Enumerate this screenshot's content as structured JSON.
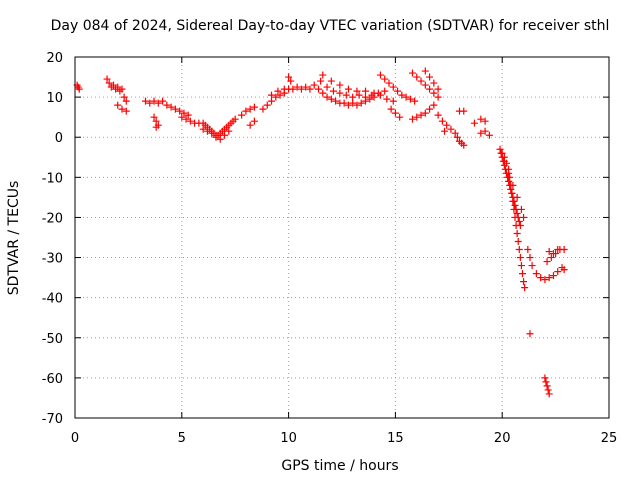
{
  "chart_data": {
    "type": "scatter",
    "title": "Day 084 of 2024, Sidereal Day-to-day VTEC variation (SDTVAR) for receiver sthl",
    "xlabel": "GPS time / hours",
    "ylabel": "SDTVAR / TECUs",
    "xlim": [
      0,
      25
    ],
    "ylim": [
      -70,
      20
    ],
    "xticks": [
      0,
      5,
      10,
      15,
      20,
      25
    ],
    "xtick_labels": [
      "0",
      "5",
      "10",
      "15",
      "20",
      "25"
    ],
    "yticks": [
      20,
      10,
      0,
      -10,
      -20,
      -30,
      -40,
      -50,
      -60,
      -70
    ],
    "ytick_labels": [
      "20",
      "10",
      "0",
      "-10",
      "-20",
      "-30",
      "-40",
      "-50",
      "-60",
      "-70"
    ],
    "grid": true,
    "marker": "+",
    "color": "#ff0000",
    "series": [
      {
        "name": "SDTVAR",
        "points": [
          [
            0.1,
            13
          ],
          [
            0.15,
            12.5
          ],
          [
            0.2,
            12
          ],
          [
            1.5,
            14.5
          ],
          [
            1.6,
            13.5
          ],
          [
            1.7,
            12.5
          ],
          [
            1.8,
            13
          ],
          [
            1.9,
            12
          ],
          [
            2.0,
            12.5
          ],
          [
            2.1,
            11.5
          ],
          [
            2.2,
            12
          ],
          [
            2.0,
            8
          ],
          [
            2.2,
            7
          ],
          [
            2.4,
            6.5
          ],
          [
            2.3,
            10
          ],
          [
            2.4,
            9
          ],
          [
            3.3,
            9
          ],
          [
            3.5,
            8.5
          ],
          [
            3.7,
            9
          ],
          [
            3.9,
            8.5
          ],
          [
            4.1,
            9
          ],
          [
            4.3,
            8
          ],
          [
            4.5,
            7.5
          ],
          [
            4.7,
            7
          ],
          [
            4.9,
            6.5
          ],
          [
            5.1,
            6
          ],
          [
            5.3,
            5.5
          ],
          [
            3.7,
            5
          ],
          [
            3.8,
            4
          ],
          [
            3.9,
            3
          ],
          [
            3.8,
            2.5
          ],
          [
            5.0,
            5
          ],
          [
            5.2,
            4.5
          ],
          [
            5.4,
            4
          ],
          [
            5.6,
            3.5
          ],
          [
            5.8,
            3.5
          ],
          [
            6.0,
            3.5
          ],
          [
            6.1,
            3
          ],
          [
            6.2,
            2.5
          ],
          [
            6.3,
            2
          ],
          [
            6.4,
            1.5
          ],
          [
            6.5,
            1
          ],
          [
            6.6,
            0.5
          ],
          [
            6.7,
            0.5
          ],
          [
            6.8,
            1
          ],
          [
            6.9,
            1.5
          ],
          [
            7.0,
            2
          ],
          [
            7.1,
            2.5
          ],
          [
            7.2,
            3
          ],
          [
            7.3,
            3.5
          ],
          [
            7.4,
            4
          ],
          [
            6.0,
            2
          ],
          [
            6.2,
            1.5
          ],
          [
            6.4,
            1
          ],
          [
            6.6,
            0
          ],
          [
            6.8,
            -0.5
          ],
          [
            7.0,
            0.5
          ],
          [
            7.2,
            1.5
          ],
          [
            7.5,
            4.5
          ],
          [
            7.8,
            5.5
          ],
          [
            8.0,
            6.5
          ],
          [
            8.2,
            7
          ],
          [
            8.4,
            7.5
          ],
          [
            8.2,
            3
          ],
          [
            8.4,
            4
          ],
          [
            8.8,
            7
          ],
          [
            9.0,
            8
          ],
          [
            9.2,
            9
          ],
          [
            9.4,
            10
          ],
          [
            9.6,
            10.5
          ],
          [
            9.8,
            11
          ],
          [
            10.0,
            12
          ],
          [
            10.2,
            12
          ],
          [
            10.4,
            12.5
          ],
          [
            10.6,
            12
          ],
          [
            10.8,
            12.5
          ],
          [
            11.0,
            12
          ],
          [
            9.2,
            10.5
          ],
          [
            9.5,
            11.5
          ],
          [
            9.8,
            12
          ],
          [
            10.0,
            15
          ],
          [
            10.1,
            14
          ],
          [
            11.2,
            13
          ],
          [
            11.4,
            12
          ],
          [
            11.6,
            11
          ],
          [
            11.8,
            10
          ],
          [
            12.0,
            9.5
          ],
          [
            12.2,
            9
          ],
          [
            12.4,
            8.5
          ],
          [
            12.6,
            8.5
          ],
          [
            12.8,
            8
          ],
          [
            13.0,
            8.5
          ],
          [
            13.2,
            8
          ],
          [
            13.4,
            8.5
          ],
          [
            13.6,
            9
          ],
          [
            13.8,
            9.5
          ],
          [
            14.0,
            10
          ],
          [
            11.5,
            14
          ],
          [
            11.8,
            12.5
          ],
          [
            12.1,
            11.5
          ],
          [
            12.4,
            11
          ],
          [
            12.7,
            10.5
          ],
          [
            13.0,
            10
          ],
          [
            13.3,
            10.5
          ],
          [
            13.6,
            10
          ],
          [
            13.9,
            10.5
          ],
          [
            14.2,
            11
          ],
          [
            14.5,
            11.5
          ],
          [
            11.6,
            15.5
          ],
          [
            12.0,
            14
          ],
          [
            12.4,
            13
          ],
          [
            12.8,
            12
          ],
          [
            13.2,
            11.5
          ],
          [
            13.6,
            11.5
          ],
          [
            14.0,
            11
          ],
          [
            14.3,
            10.5
          ],
          [
            14.6,
            9.5
          ],
          [
            14.9,
            9
          ],
          [
            14.3,
            15.5
          ],
          [
            14.5,
            14.5
          ],
          [
            14.7,
            13.5
          ],
          [
            14.9,
            12.5
          ],
          [
            15.1,
            11.5
          ],
          [
            15.3,
            10.5
          ],
          [
            15.5,
            10
          ],
          [
            15.7,
            9.5
          ],
          [
            15.9,
            9
          ],
          [
            14.8,
            7
          ],
          [
            15.0,
            6
          ],
          [
            15.2,
            5
          ],
          [
            15.8,
            16
          ],
          [
            16.0,
            15
          ],
          [
            16.2,
            14
          ],
          [
            16.4,
            13
          ],
          [
            16.6,
            12
          ],
          [
            16.8,
            11
          ],
          [
            17.0,
            10
          ],
          [
            16.8,
            8
          ],
          [
            16.6,
            7
          ],
          [
            16.4,
            6
          ],
          [
            16.2,
            5.5
          ],
          [
            16.0,
            5
          ],
          [
            15.8,
            4.5
          ],
          [
            16.4,
            16.5
          ],
          [
            16.6,
            15
          ],
          [
            16.8,
            13.5
          ],
          [
            17.0,
            12
          ],
          [
            17.0,
            5.5
          ],
          [
            17.2,
            4
          ],
          [
            17.4,
            3
          ],
          [
            17.3,
            1.5
          ],
          [
            17.6,
            2
          ],
          [
            17.8,
            1
          ],
          [
            17.9,
            0
          ],
          [
            18.0,
            -1
          ],
          [
            18.1,
            -1.5
          ],
          [
            18.2,
            -2
          ],
          [
            18.0,
            6.5
          ],
          [
            18.2,
            6.5
          ],
          [
            18.7,
            3.5
          ],
          [
            19.0,
            4.5
          ],
          [
            19.2,
            4
          ],
          [
            19.0,
            1
          ],
          [
            19.2,
            1.5
          ],
          [
            19.4,
            0.5
          ],
          [
            19.9,
            -3
          ],
          [
            19.95,
            -4
          ],
          [
            20.0,
            -5
          ],
          [
            20.05,
            -6
          ],
          [
            20.1,
            -7
          ],
          [
            20.15,
            -8
          ],
          [
            20.2,
            -9
          ],
          [
            20.25,
            -10
          ],
          [
            20.3,
            -11
          ],
          [
            20.35,
            -12
          ],
          [
            20.4,
            -13
          ],
          [
            20.45,
            -14
          ],
          [
            20.5,
            -15
          ],
          [
            20.55,
            -16
          ],
          [
            20.6,
            -17
          ],
          [
            20.65,
            -18
          ],
          [
            20.7,
            -19
          ],
          [
            20.75,
            -20
          ],
          [
            20.8,
            -21
          ],
          [
            20.85,
            -22
          ],
          [
            20.0,
            -4
          ],
          [
            20.1,
            -5
          ],
          [
            20.2,
            -6.5
          ],
          [
            20.3,
            -8
          ],
          [
            20.35,
            -10
          ],
          [
            20.4,
            -12
          ],
          [
            20.45,
            -14
          ],
          [
            20.5,
            -16
          ],
          [
            20.55,
            -18
          ],
          [
            20.6,
            -20
          ],
          [
            20.65,
            -22
          ],
          [
            20.7,
            -24
          ],
          [
            20.75,
            -26
          ],
          [
            20.8,
            -28
          ],
          [
            20.85,
            -30
          ],
          [
            20.9,
            -32
          ],
          [
            20.95,
            -34
          ],
          [
            21.0,
            -36
          ],
          [
            21.05,
            -37.5
          ],
          [
            20.1,
            -6
          ],
          [
            20.3,
            -9
          ],
          [
            20.5,
            -12
          ],
          [
            20.7,
            -15
          ],
          [
            20.9,
            -18
          ],
          [
            21.0,
            -20
          ],
          [
            21.2,
            -28
          ],
          [
            21.3,
            -30
          ],
          [
            21.4,
            -32
          ],
          [
            21.6,
            -34
          ],
          [
            21.8,
            -35
          ],
          [
            22.0,
            -35.5
          ],
          [
            22.2,
            -35
          ],
          [
            22.4,
            -34.5
          ],
          [
            22.6,
            -33.5
          ],
          [
            22.8,
            -32.5
          ],
          [
            22.1,
            -31
          ],
          [
            22.3,
            -30
          ],
          [
            22.5,
            -29
          ],
          [
            22.7,
            -28
          ],
          [
            22.2,
            -28.5
          ],
          [
            22.4,
            -29
          ],
          [
            22.6,
            -28
          ],
          [
            22.9,
            -28
          ],
          [
            22.9,
            -33
          ],
          [
            21.3,
            -49
          ],
          [
            22.0,
            -60
          ],
          [
            22.05,
            -61
          ],
          [
            22.1,
            -62
          ],
          [
            22.15,
            -63
          ],
          [
            22.2,
            -64
          ]
        ]
      }
    ]
  }
}
